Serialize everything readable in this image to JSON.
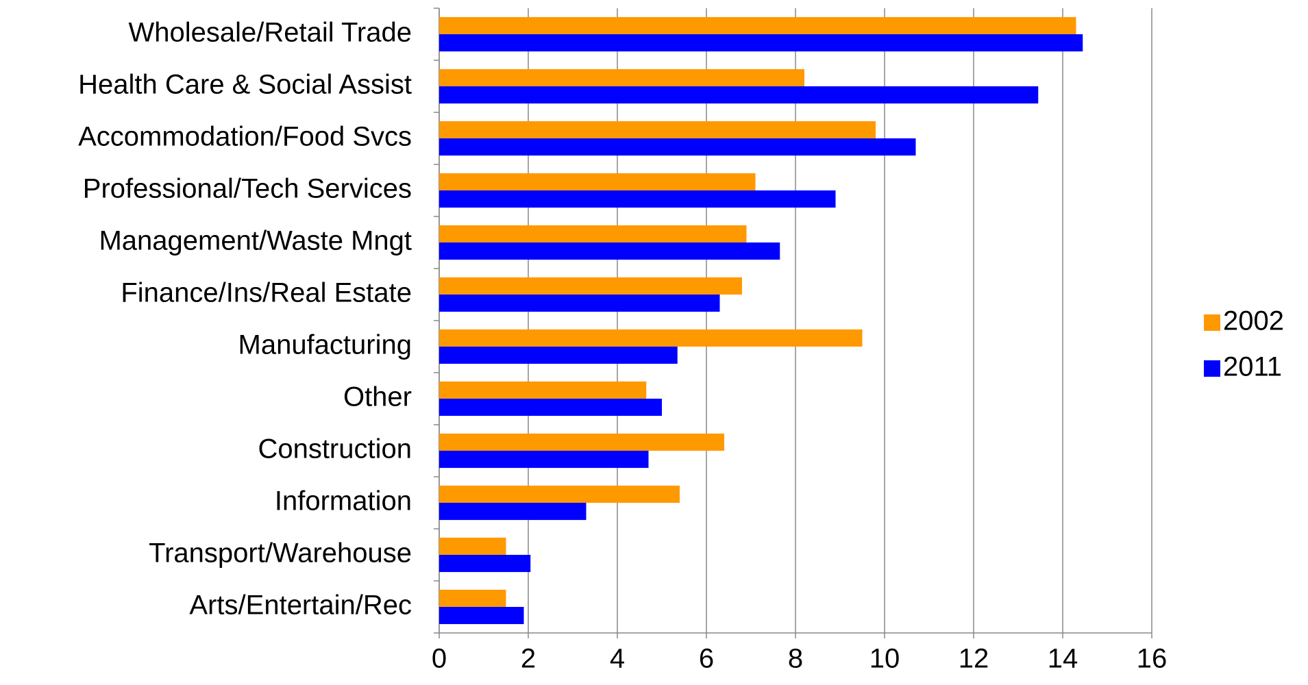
{
  "chart_data": {
    "type": "bar",
    "orientation": "horizontal",
    "categories": [
      "Wholesale/Retail Trade",
      "Health Care & Social Assist",
      "Accommodation/Food Svcs",
      "Professional/Tech Services",
      "Management/Waste Mngt",
      "Finance/Ins/Real Estate",
      "Manufacturing",
      "Other",
      "Construction",
      "Information",
      "Transport/Warehouse",
      "Arts/Entertain/Rec"
    ],
    "series": [
      {
        "name": "2002",
        "color": "#ff9900",
        "values": [
          14.3,
          8.2,
          9.8,
          7.1,
          6.9,
          6.8,
          9.5,
          4.65,
          6.4,
          5.4,
          1.5,
          1.5
        ]
      },
      {
        "name": "2011",
        "color": "#0000ff",
        "values": [
          14.45,
          13.45,
          10.7,
          8.9,
          7.65,
          6.3,
          5.35,
          5.0,
          4.7,
          3.3,
          2.05,
          1.9
        ]
      }
    ],
    "xlim": [
      0,
      16
    ],
    "xticks": [
      0,
      2,
      4,
      6,
      8,
      10,
      12,
      14,
      16
    ],
    "grid": true,
    "legend": "right"
  }
}
